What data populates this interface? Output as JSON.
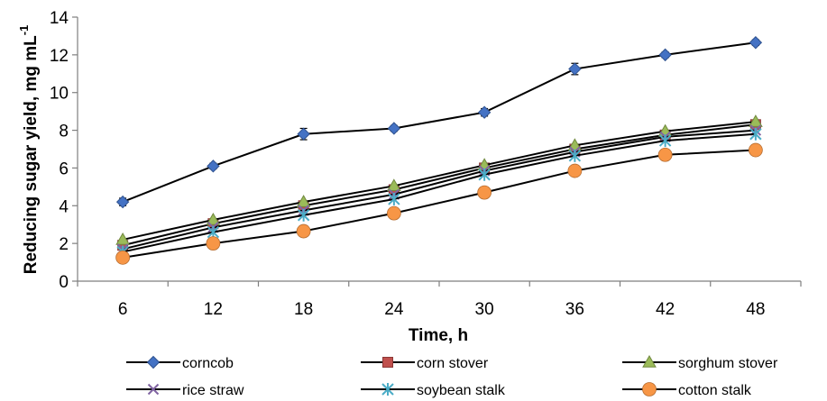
{
  "chart_data": {
    "type": "line",
    "title": "",
    "xlabel": "Time, h",
    "ylabel": "Reducing sugar yield, mg mL",
    "ylabel_superscript": "-1",
    "x": [
      6,
      12,
      18,
      24,
      30,
      36,
      42,
      48
    ],
    "ylim": [
      0,
      14
    ],
    "yticks": [
      0,
      2,
      4,
      6,
      8,
      10,
      12,
      14
    ],
    "grid": false,
    "legend": "bottom",
    "series": [
      {
        "name": "corncob",
        "marker": "diamond",
        "color": "#4472C4",
        "values": [
          4.2,
          6.1,
          7.8,
          8.1,
          8.95,
          11.25,
          12.0,
          12.65
        ],
        "errors": [
          0.2,
          0.15,
          0.3,
          0.15,
          0.2,
          0.3,
          0.15,
          0.15
        ]
      },
      {
        "name": "corn stover",
        "marker": "square",
        "color": "#C0504D",
        "values": [
          1.9,
          3.05,
          4.0,
          4.85,
          6.0,
          7.0,
          7.75,
          8.3
        ],
        "errors": []
      },
      {
        "name": "sorghum stover",
        "marker": "triangle",
        "color": "#9BBB59",
        "values": [
          2.2,
          3.25,
          4.2,
          5.05,
          6.15,
          7.2,
          7.95,
          8.45
        ],
        "errors": []
      },
      {
        "name": "rice straw",
        "marker": "x",
        "color": "#8064A2",
        "values": [
          1.7,
          2.85,
          3.75,
          4.6,
          5.85,
          6.85,
          7.65,
          8.0
        ],
        "errors": []
      },
      {
        "name": "soybean stalk",
        "marker": "star",
        "color": "#4BACC6",
        "values": [
          1.55,
          2.6,
          3.5,
          4.35,
          5.65,
          6.65,
          7.45,
          7.8
        ],
        "errors": []
      },
      {
        "name": "cotton stalk",
        "marker": "circle",
        "color": "#F79646",
        "values": [
          1.25,
          2.0,
          2.65,
          3.6,
          4.7,
          5.85,
          6.7,
          6.95
        ],
        "errors": []
      }
    ]
  }
}
